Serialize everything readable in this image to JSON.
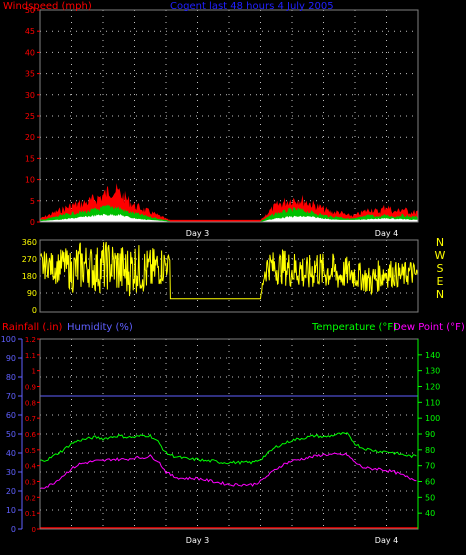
{
  "title": "Cogent last 48 hours 4 July 2005",
  "colors": {
    "background": "#000000",
    "frame": "#808080",
    "grid": "#c0c0c0",
    "wind_gust": "#ff0000",
    "wind_avg": "#00c000",
    "wind_low": "#ffffff",
    "direction": "#ffff00",
    "rainfall": "#ff0000",
    "humidity": "#6060ff",
    "temperature": "#00ff00",
    "dewpoint": "#ff00ff",
    "title": "#2020ff"
  },
  "chart_data": [
    {
      "type": "area",
      "name": "wind",
      "ylabel": "Windspeed (mph)",
      "ylim": [
        0,
        50
      ],
      "yticks": [
        0,
        5,
        10,
        15,
        20,
        25,
        30,
        35,
        40,
        45,
        50
      ],
      "xlim": [
        0,
        48
      ],
      "xtick_labels": [
        {
          "x": 20,
          "label": "Day 3"
        },
        {
          "x": 44,
          "label": "Day 4"
        }
      ],
      "grid": true,
      "series": [
        {
          "key": "gust",
          "x": [
            0,
            2,
            4,
            6,
            8,
            9,
            10,
            11,
            12,
            13,
            14,
            15,
            16,
            16.5,
            28,
            29,
            30,
            31,
            32,
            33,
            34,
            35,
            36,
            37,
            38,
            39,
            40,
            41,
            42,
            43,
            44,
            45,
            46,
            47,
            48
          ],
          "values": [
            1,
            3,
            5,
            6,
            8,
            10,
            9,
            7,
            5,
            4,
            3,
            2,
            1,
            0.5,
            0.5,
            3,
            5,
            6,
            7,
            7,
            6,
            5,
            4,
            3,
            3,
            2,
            2,
            3,
            4,
            3,
            5,
            3,
            4,
            3,
            3
          ]
        },
        {
          "key": "avg",
          "x": [
            0,
            2,
            4,
            6,
            8,
            9,
            10,
            11,
            12,
            13,
            14,
            15,
            16,
            16.5,
            28,
            29,
            30,
            31,
            32,
            33,
            34,
            35,
            36,
            37,
            38,
            39,
            40,
            41,
            42,
            43,
            44,
            45,
            46,
            47,
            48
          ],
          "values": [
            0.5,
            1.5,
            2.5,
            3,
            4,
            4.5,
            4,
            3,
            2.5,
            2,
            1.5,
            1,
            0.5,
            0.2,
            0.2,
            1.5,
            2.5,
            3,
            3.5,
            3.5,
            3,
            2.5,
            2,
            1.5,
            1.5,
            1,
            1,
            1.5,
            2,
            1.5,
            2,
            1.5,
            2,
            1.5,
            1.5
          ]
        },
        {
          "key": "low",
          "x": [
            0,
            2,
            4,
            6,
            8,
            10,
            12,
            14,
            16,
            16.5,
            28,
            30,
            32,
            34,
            36,
            38,
            40,
            42,
            44,
            46,
            48
          ],
          "values": [
            0.2,
            0.5,
            1,
            1.5,
            2,
            2,
            1,
            0.5,
            0.2,
            0,
            0,
            1,
            1.5,
            1.5,
            1,
            0.5,
            0.5,
            0.8,
            1,
            0.8,
            0.5
          ]
        }
      ]
    },
    {
      "type": "line",
      "name": "wind-direction",
      "ylim": [
        0,
        360
      ],
      "yticks": [
        0,
        90,
        180,
        270,
        360
      ],
      "ytick_labels": [
        "0",
        "90",
        "180",
        "270",
        "360"
      ],
      "compass_labels": [
        "N",
        "W",
        "S",
        "E",
        "N"
      ],
      "xlim": [
        0,
        48
      ],
      "grid": true,
      "series": [
        {
          "key": "direction",
          "x": [
            0,
            1,
            2,
            3,
            4,
            5,
            6,
            7,
            8,
            9,
            10,
            11,
            12,
            13,
            14,
            15,
            16,
            16.5,
            17,
            28,
            28.5,
            29,
            30,
            31,
            32,
            33,
            34,
            35,
            36,
            37,
            38,
            39,
            40,
            41,
            42,
            43,
            44,
            45,
            46,
            47,
            48
          ],
          "values": [
            230,
            240,
            220,
            250,
            200,
            230,
            240,
            210,
            230,
            240,
            220,
            200,
            230,
            210,
            200,
            230,
            240,
            270,
            60,
            60,
            200,
            240,
            220,
            230,
            210,
            220,
            180,
            230,
            200,
            210,
            180,
            200,
            190,
            170,
            150,
            180,
            200,
            190,
            180,
            200,
            180
          ],
          "jitter": [
            60,
            50,
            60,
            60,
            80,
            100,
            80,
            90,
            100,
            90,
            100,
            100,
            100,
            90,
            90,
            80,
            70,
            0,
            0,
            0,
            50,
            60,
            60,
            70,
            70,
            80,
            70,
            80,
            70,
            70,
            60,
            60,
            60,
            50,
            60,
            60,
            60,
            50,
            50,
            50,
            40
          ]
        }
      ]
    },
    {
      "type": "line",
      "name": "climate",
      "left_axis_label": "Rainfall (.in)",
      "left_axis2_label": "Humidity (%)",
      "right_axis_label": "Temperature (°F)",
      "right_axis2_label": "Dew Point (°F)",
      "rain_ylim": [
        0,
        1.2
      ],
      "rain_ticks": [
        "0",
        "0.1",
        "0.2",
        "0.3",
        "0.4",
        "0.5",
        "0.6",
        "0.7",
        "0.8",
        "0.9",
        "1",
        "1.1",
        "1.2"
      ],
      "humidity_ylim": [
        0,
        100
      ],
      "humidity_ticks": [
        "0",
        "10",
        "20",
        "30",
        "40",
        "50",
        "60",
        "70",
        "80",
        "90",
        "100"
      ],
      "temp_ylim": [
        30,
        150
      ],
      "temp_ticks": [
        "40",
        "50",
        "60",
        "70",
        "80",
        "90",
        "100",
        "110",
        "120",
        "130",
        "140"
      ],
      "xlim": [
        0,
        48
      ],
      "xtick_labels": [
        {
          "x": 20,
          "label": "Day 3"
        },
        {
          "x": 44,
          "label": "Day 4"
        }
      ],
      "grid": true,
      "series": [
        {
          "key": "humidity_line",
          "axis": "humidity",
          "x": [
            0,
            48
          ],
          "values": [
            70,
            70
          ]
        },
        {
          "key": "rainfall",
          "axis": "rain",
          "x": [
            0,
            48
          ],
          "values": [
            0.005,
            0.005
          ]
        },
        {
          "key": "temperature",
          "axis": "temp",
          "x": [
            0,
            1,
            2,
            3,
            4,
            5,
            6,
            7,
            8,
            9,
            10,
            11,
            12,
            13,
            14,
            15,
            16,
            17,
            18,
            19,
            20,
            21,
            22,
            23,
            24,
            25,
            26,
            27,
            28,
            29,
            30,
            31,
            32,
            33,
            34,
            35,
            36,
            37,
            38,
            39,
            40,
            41,
            42,
            43,
            44,
            45,
            46,
            47,
            48
          ],
          "values": [
            73,
            74,
            77,
            80,
            84,
            86,
            87,
            88,
            87,
            88,
            89,
            88,
            88,
            89,
            89,
            85,
            78,
            76,
            75,
            74,
            74,
            73,
            73,
            72,
            72,
            72,
            72,
            72,
            74,
            78,
            82,
            84,
            86,
            87,
            88,
            89,
            88,
            89,
            90,
            90,
            84,
            81,
            80,
            79,
            79,
            78,
            77,
            76,
            76
          ]
        },
        {
          "key": "dewpoint",
          "axis": "temp",
          "x": [
            0,
            1,
            2,
            3,
            4,
            5,
            6,
            7,
            8,
            9,
            10,
            11,
            12,
            13,
            14,
            15,
            16,
            17,
            18,
            19,
            20,
            21,
            22,
            23,
            24,
            25,
            26,
            27,
            28,
            29,
            30,
            31,
            32,
            33,
            34,
            35,
            36,
            37,
            38,
            39,
            40,
            41,
            42,
            43,
            44,
            45,
            46,
            47,
            48
          ],
          "values": [
            56,
            57,
            60,
            64,
            68,
            71,
            72,
            73,
            73,
            74,
            74,
            74,
            75,
            75,
            76,
            73,
            66,
            63,
            62,
            62,
            62,
            61,
            60,
            59,
            58,
            58,
            58,
            58,
            60,
            64,
            68,
            71,
            73,
            74,
            75,
            76,
            77,
            77,
            77,
            77,
            72,
            69,
            68,
            68,
            67,
            66,
            64,
            62,
            61
          ]
        }
      ]
    }
  ]
}
